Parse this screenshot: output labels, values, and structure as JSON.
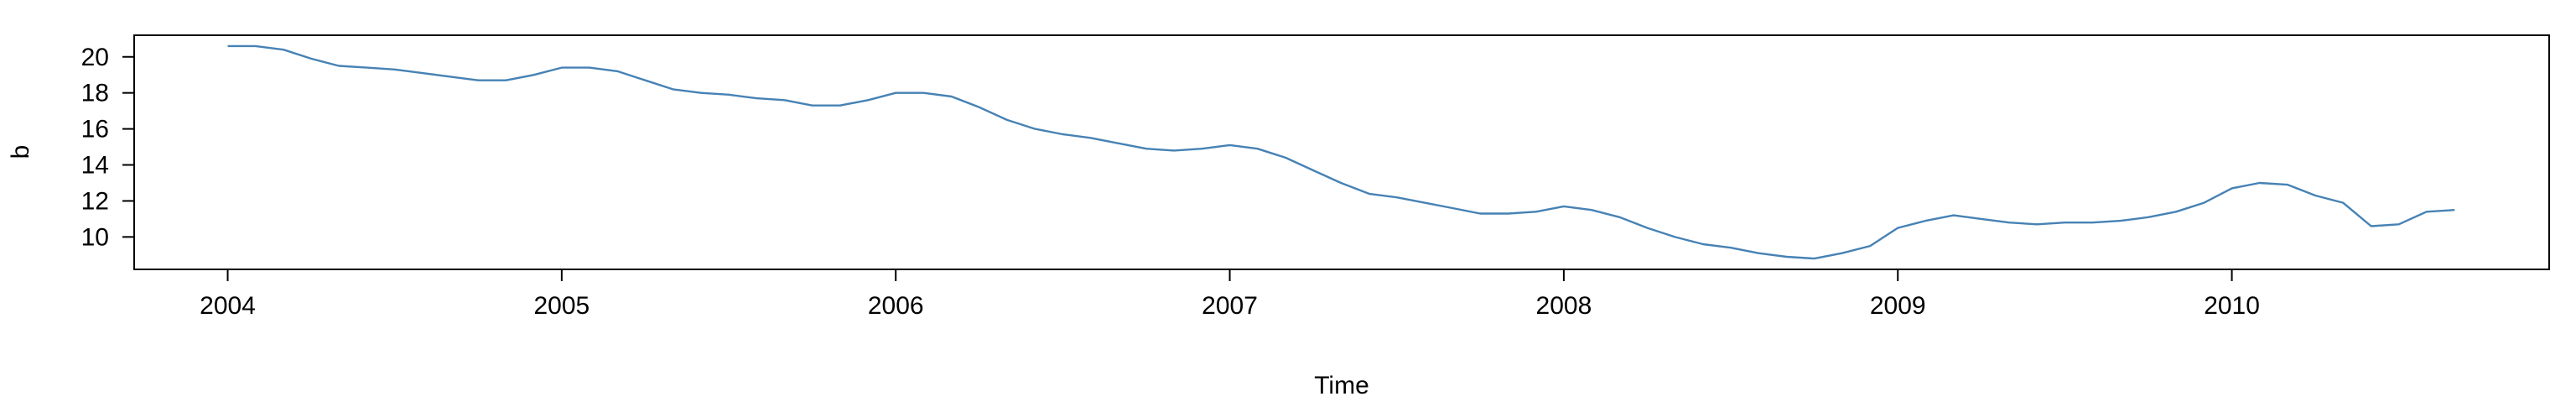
{
  "chart_data": {
    "type": "line",
    "title": "",
    "xlabel": "Time",
    "ylabel": "b",
    "xlim": [
      2003.72,
      2010.95
    ],
    "ylim": [
      8.2,
      21.2
    ],
    "x_ticks": [
      2004,
      2005,
      2006,
      2007,
      2008,
      2009,
      2010
    ],
    "x_tick_labels": [
      "2004",
      "2005",
      "2006",
      "2007",
      "2008",
      "2009",
      "2010"
    ],
    "y_ticks": [
      10,
      12,
      14,
      16,
      18,
      20
    ],
    "y_tick_labels": [
      "10",
      "12",
      "14",
      "16",
      "18",
      "20"
    ],
    "grid": false,
    "legend": "none",
    "colors": {
      "line": "#4682b4",
      "axis": "#000000"
    },
    "series": [
      {
        "color": "#4682b4",
        "x": [
          2004.0,
          2004.083,
          2004.167,
          2004.25,
          2004.333,
          2004.417,
          2004.5,
          2004.583,
          2004.667,
          2004.75,
          2004.833,
          2004.917,
          2005.0,
          2005.083,
          2005.167,
          2005.25,
          2005.333,
          2005.417,
          2005.5,
          2005.583,
          2005.667,
          2005.75,
          2005.833,
          2005.917,
          2006.0,
          2006.083,
          2006.167,
          2006.25,
          2006.333,
          2006.417,
          2006.5,
          2006.583,
          2006.667,
          2006.75,
          2006.833,
          2006.917,
          2007.0,
          2007.083,
          2007.167,
          2007.25,
          2007.333,
          2007.417,
          2007.5,
          2007.583,
          2007.667,
          2007.75,
          2007.833,
          2007.917,
          2008.0,
          2008.083,
          2008.167,
          2008.25,
          2008.333,
          2008.417,
          2008.5,
          2008.583,
          2008.667,
          2008.75,
          2008.833,
          2008.917,
          2009.0,
          2009.083,
          2009.167,
          2009.25,
          2009.333,
          2009.417,
          2009.5,
          2009.583,
          2009.667,
          2009.75,
          2009.833,
          2009.917,
          2010.0,
          2010.083,
          2010.167,
          2010.25,
          2010.333,
          2010.417,
          2010.5,
          2010.583,
          2010.667
        ],
        "y": [
          20.6,
          20.6,
          20.4,
          19.9,
          19.5,
          19.4,
          19.3,
          19.1,
          18.9,
          18.7,
          18.7,
          19.0,
          19.4,
          19.4,
          19.2,
          18.7,
          18.2,
          18.0,
          17.9,
          17.7,
          17.6,
          17.3,
          17.3,
          17.6,
          18.0,
          18.0,
          17.8,
          17.2,
          16.5,
          16.0,
          15.7,
          15.5,
          15.2,
          14.9,
          14.8,
          14.9,
          15.1,
          14.9,
          14.4,
          13.7,
          13.0,
          12.4,
          12.2,
          11.9,
          11.6,
          11.3,
          11.3,
          11.4,
          11.7,
          11.5,
          11.1,
          10.5,
          10.0,
          9.6,
          9.4,
          9.1,
          8.9,
          8.8,
          9.1,
          9.5,
          10.5,
          10.9,
          11.2,
          11.0,
          10.8,
          10.7,
          10.8,
          10.8,
          10.9,
          11.1,
          11.4,
          11.9,
          12.7,
          13.0,
          12.9,
          12.3,
          11.9,
          10.6,
          10.7,
          11.4,
          11.5
        ]
      }
    ]
  }
}
